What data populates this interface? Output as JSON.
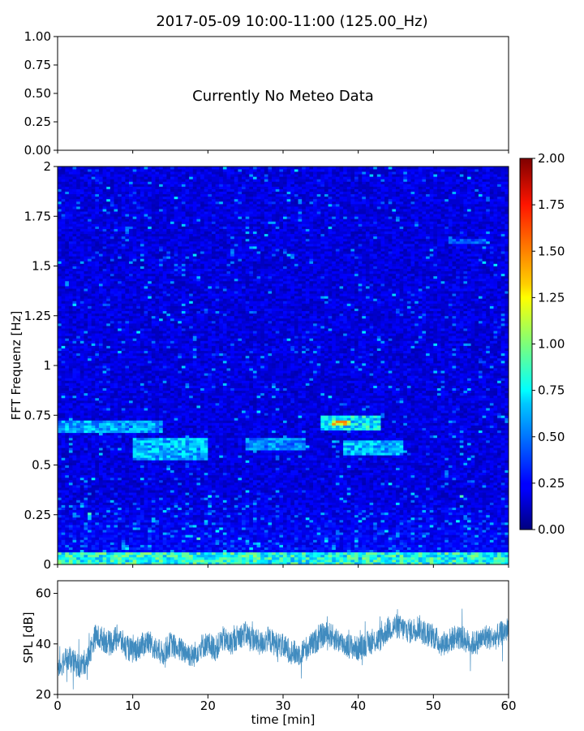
{
  "title": "2017-05-09 10:00-11:00 (125.00_Hz)",
  "meteo_panel": {
    "message": "Currently No Meteo Data",
    "ylim": [
      0,
      1
    ],
    "yticks": [
      "0.00",
      "0.25",
      "0.50",
      "0.75",
      "1.00"
    ]
  },
  "chart_data": [
    {
      "type": "line",
      "title": "",
      "panel": "meteo",
      "series": [],
      "xlim": [
        0,
        60
      ],
      "ylim": [
        0,
        1
      ],
      "yticks": [
        0,
        0.25,
        0.5,
        0.75,
        1.0
      ],
      "ytick_labels": [
        "0.00",
        "0.25",
        "0.50",
        "0.75",
        "1.00"
      ],
      "annotation": "Currently No Meteo Data"
    },
    {
      "type": "heatmap",
      "panel": "spectrogram",
      "xlabel": "",
      "ylabel": "FFT Frequenz [Hz]",
      "xlim": [
        0,
        60
      ],
      "ylim": [
        0,
        2
      ],
      "yticks": [
        0,
        0.25,
        0.5,
        0.75,
        1,
        1.25,
        1.5,
        1.75,
        2
      ],
      "ytick_labels": [
        "0",
        "0.25",
        "0.5",
        "0.75",
        "1",
        "1.25",
        "1.5",
        "1.75",
        "2"
      ],
      "colormap": "jet",
      "colorbar": {
        "range": [
          0,
          2
        ],
        "ticks": [
          "0.00",
          "0.25",
          "0.50",
          "0.75",
          "1.00",
          "1.25",
          "1.50",
          "1.75",
          "2.00"
        ]
      },
      "n_time_bins": 120,
      "n_freq_bins": 160,
      "background_level": 0.15,
      "features": [
        {
          "desc": "low-frequency band",
          "t": [
            0,
            60
          ],
          "f": [
            0.0,
            0.06
          ],
          "level": 1.0
        },
        {
          "desc": "band",
          "t": [
            0,
            14
          ],
          "f": [
            0.66,
            0.73
          ],
          "level": 0.7
        },
        {
          "desc": "band",
          "t": [
            10,
            20
          ],
          "f": [
            0.53,
            0.64
          ],
          "level": 0.75
        },
        {
          "desc": "band",
          "t": [
            25,
            33
          ],
          "f": [
            0.58,
            0.64
          ],
          "level": 0.65
        },
        {
          "desc": "band",
          "t": [
            35,
            43
          ],
          "f": [
            0.68,
            0.75
          ],
          "level": 0.9
        },
        {
          "desc": "peak",
          "t": [
            36.5,
            39
          ],
          "f": [
            0.7,
            0.73
          ],
          "level": 1.85
        },
        {
          "desc": "band",
          "t": [
            38,
            46
          ],
          "f": [
            0.55,
            0.62
          ],
          "level": 0.75
        },
        {
          "desc": "band",
          "t": [
            52,
            57
          ],
          "f": [
            1.61,
            1.64
          ],
          "level": 0.5
        }
      ]
    },
    {
      "type": "line",
      "panel": "spl",
      "xlabel": "time [min]",
      "ylabel": "SPL [dB]",
      "xlim": [
        0,
        60
      ],
      "ylim": [
        20,
        65
      ],
      "xticks": [
        0,
        10,
        20,
        30,
        40,
        50,
        60
      ],
      "yticks": [
        20,
        40,
        60
      ],
      "color": "#1f77b4",
      "series": [
        {
          "x": [
            0,
            1,
            2,
            3,
            4,
            5,
            6,
            7,
            8,
            9,
            10,
            11,
            12,
            13,
            14,
            15,
            16,
            17,
            18,
            19,
            20,
            21,
            22,
            23,
            24,
            25,
            26,
            27,
            28,
            29,
            30,
            31,
            32,
            33,
            34,
            35,
            36,
            37,
            38,
            39,
            40,
            41,
            42,
            43,
            44,
            45,
            46,
            47,
            48,
            49,
            50,
            51,
            52,
            53,
            54,
            55,
            56,
            57,
            58,
            59,
            60
          ],
          "y": [
            30,
            34,
            33,
            31,
            34,
            43,
            42,
            40,
            43,
            39,
            37,
            39,
            41,
            38,
            36,
            40,
            38,
            37,
            35,
            39,
            40,
            38,
            42,
            40,
            43,
            44,
            42,
            40,
            42,
            40,
            39,
            37,
            36,
            38,
            40,
            43,
            44,
            42,
            40,
            39,
            38,
            40,
            41,
            42,
            46,
            47,
            46,
            45,
            47,
            44,
            43,
            40,
            41,
            43,
            42,
            40,
            41,
            43,
            42,
            44,
            46
          ],
          "band": 5
        }
      ]
    }
  ]
}
